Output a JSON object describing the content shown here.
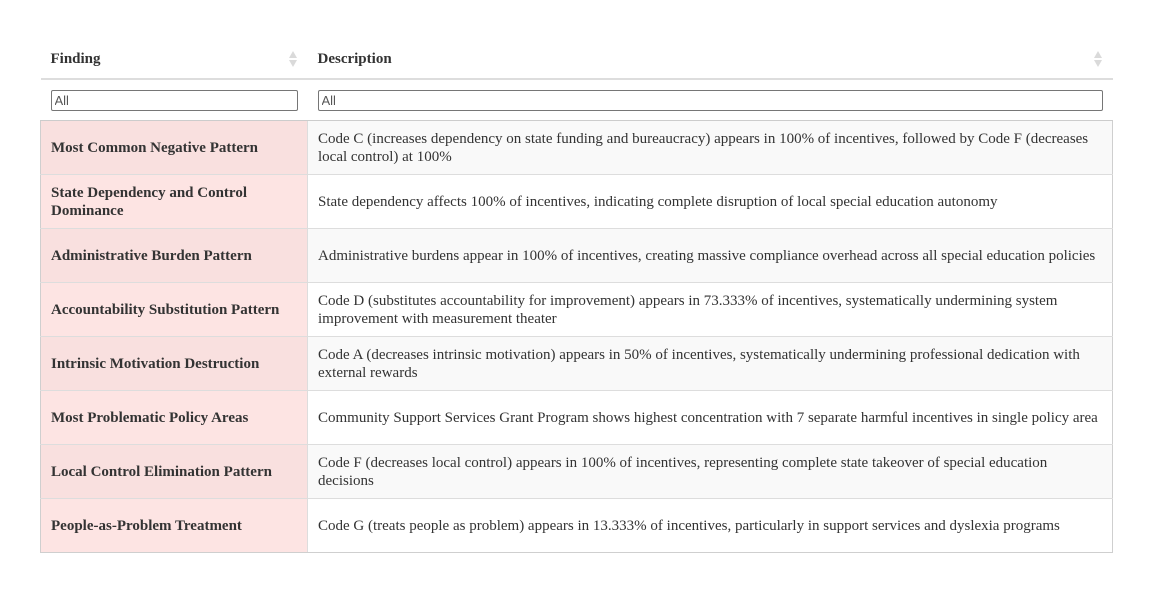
{
  "table": {
    "columns": [
      {
        "label": "Finding",
        "filter_placeholder": "All"
      },
      {
        "label": "Description",
        "filter_placeholder": "All"
      }
    ],
    "rows": [
      {
        "finding": "Most Common Negative Pattern",
        "description": "Code C (increases dependency on state funding and bureaucracy) appears in 100% of incentives, followed by Code F (decreases local control) at 100%"
      },
      {
        "finding": "State Dependency and Control Dominance",
        "description": "State dependency affects 100% of incentives, indicating complete disruption of local special education autonomy"
      },
      {
        "finding": "Administrative Burden Pattern",
        "description": "Administrative burdens appear in 100% of incentives, creating massive compliance overhead across all special education policies"
      },
      {
        "finding": "Accountability Substitution Pattern",
        "description": "Code D (substitutes accountability for improvement) appears in 73.333% of incentives, systematically undermining system improvement with measurement theater"
      },
      {
        "finding": "Intrinsic Motivation Destruction",
        "description": "Code A (decreases intrinsic motivation) appears in 50% of incentives, systematically undermining professional dedication with external rewards"
      },
      {
        "finding": "Most Problematic Policy Areas",
        "description": "Community Support Services Grant Program shows highest concentration with 7 separate harmful incentives in single policy area"
      },
      {
        "finding": "Local Control Elimination Pattern",
        "description": "Code F (decreases local control) appears in 100% of incentives, representing complete state takeover of special education decisions"
      },
      {
        "finding": "People-as-Problem Treatment",
        "description": "Code G (treats people as problem) appears in 13.333% of incentives, particularly in support services and dyslexia programs"
      }
    ]
  },
  "colors": {
    "finding_cell_bg": "#fde4e3",
    "finding_cell_bg_alt": "#f9e0df",
    "desc_cell_bg_alt": "#f9f9f9",
    "border": "#dddddd"
  },
  "icons": {
    "sort": "sort-both-icon"
  }
}
